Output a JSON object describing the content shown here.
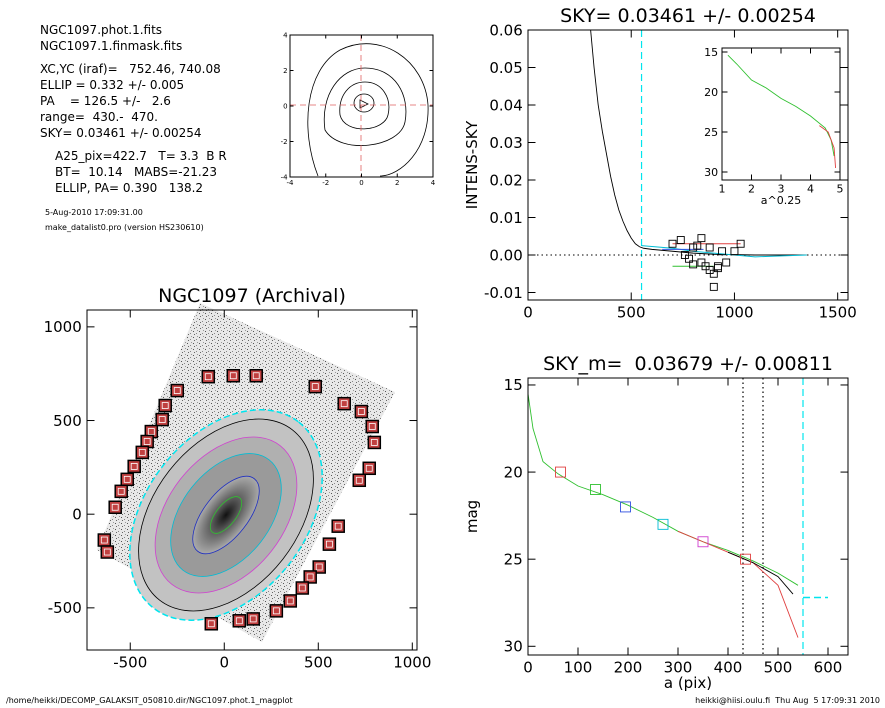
{
  "header": {
    "files": [
      "NGC1097.phot.1.fits",
      "NGC1097.1.finmask.fits"
    ],
    "params": [
      "XC,YC (iraf)=   752.46, 740.08",
      "ELLIP = 0.332 +/- 0.005",
      "PA    = 126.5 +/-   2.6",
      "range=  430.-  470.",
      "SKY= 0.03461 +/- 0.00254"
    ],
    "derived": [
      "A25_pix=422.7   T= 3.3  B R",
      "BT=  10.14   MABS=-21.23",
      "ELLIP, PA= 0.390   138.2"
    ],
    "date": "5-Aug-2010 17:09:31.00",
    "program": "make_datalist0.pro (version HS230610)"
  },
  "footer": {
    "left": "/home/heikki/DECOMP_GALAKSIT_050810.dir/NGC1097.phot.1_magplot",
    "right": "heikki@hiisi.oulu.fi  Thu Aug  5 17:09:31 2010"
  },
  "chart_data": [
    {
      "type": "contour",
      "xlim": [
        -4,
        4
      ],
      "ylim": [
        -4,
        4
      ],
      "xticks": [
        -4,
        -2,
        0,
        2,
        4
      ],
      "yticks": [
        -4,
        -2,
        0,
        2,
        4
      ]
    },
    {
      "type": "line",
      "title": "SKY= 0.03461 +/- 0.00254",
      "ylabel": "INTENS-SKY",
      "xlim": [
        0,
        1550
      ],
      "ylim": [
        -0.012,
        0.06
      ],
      "xticks": [
        0,
        500,
        1000,
        1500
      ],
      "yticks": [
        0.06,
        0.05,
        0.04,
        0.03,
        0.02,
        0.01,
        {
          "value": 0,
          "label": "0.00"
        },
        -0.01
      ],
      "series": [
        {
          "color": "#000000",
          "x": [
            300,
            320,
            340,
            360,
            380,
            400,
            420,
            440,
            460,
            480,
            500,
            520,
            540,
            560,
            600,
            700,
            800,
            900,
            1000,
            1100,
            1200,
            1350
          ],
          "values": [
            0.062,
            0.05,
            0.04,
            0.033,
            0.027,
            0.021,
            0.016,
            0.012,
            0.009,
            0.0065,
            0.0045,
            0.003,
            0.0022,
            0.0018,
            0.0015,
            0.001,
            0.0005,
            0.0002,
            0.0001,
            0,
            0,
            0
          ]
        },
        {
          "color": "#00bcd4",
          "x": [
            550,
            700,
            800,
            900,
            1000,
            1100,
            1200,
            1350
          ],
          "values": [
            0.0025,
            0.0018,
            0.001,
            0.0005,
            0,
            -0.0005,
            -0.0003,
            0
          ]
        },
        {
          "color": "#e04040",
          "x": [
            700,
            1030
          ],
          "values": [
            0.003,
            0.003
          ]
        },
        {
          "color": "#30c030",
          "x": [
            700,
            900
          ],
          "values": [
            -0.003,
            -0.003
          ]
        },
        {
          "color": "#3050e0",
          "x": [
            650,
            850
          ],
          "values": [
            0.0015,
            0.0015
          ]
        },
        {
          "color": "#000000",
          "marker": "square",
          "x": [
            700,
            740,
            760,
            780,
            800,
            820,
            840,
            860,
            880,
            900,
            920,
            940,
            960,
            1000,
            1030,
            800,
            840,
            880,
            920,
            900
          ],
          "values": [
            0.003,
            0.004,
            0,
            -0.001,
            0.002,
            0.0025,
            -0.002,
            -0.003,
            -0.004,
            -0.005,
            -0.003,
            0.001,
            -0.002,
            0.001,
            0.003,
            -0.0025,
            0.0045,
            0.002,
            -0.0035,
            -0.0085
          ]
        }
      ],
      "vlines": [
        {
          "x": 550,
          "color": "#00e5ee",
          "dash": "dash"
        }
      ],
      "hlines": [
        {
          "y": 0,
          "color": "#000000",
          "dash": "dot"
        }
      ]
    },
    {
      "type": "line",
      "xlabel": "a^0.25",
      "xlim": [
        1,
        5
      ],
      "ylim": [
        31,
        14.5
      ],
      "xticks": [
        1,
        2,
        3,
        4,
        5
      ],
      "yticks": [
        15,
        20,
        25,
        30
      ],
      "series": [
        {
          "color": "#30c030",
          "x": [
            1.2,
            1.5,
            2,
            2.5,
            3,
            3.5,
            4,
            4.5,
            4.7,
            4.8
          ],
          "values": [
            15.4,
            16.5,
            18.5,
            19.5,
            20.8,
            21.8,
            23,
            24.5,
            26,
            28
          ]
        },
        {
          "color": "#e04040",
          "x": [
            4.3,
            4.6,
            4.8,
            4.85
          ],
          "values": [
            24.2,
            25,
            27,
            29.5
          ]
        }
      ]
    },
    {
      "type": "image",
      "title": "NGC1097 (Archival)",
      "xlim": [
        -730,
        1025
      ],
      "ylim": [
        -725,
        1090
      ],
      "xticks": [
        -500,
        0,
        500,
        1000
      ],
      "yticks": [
        -500,
        0,
        500,
        1000
      ],
      "series": [
        {
          "color": "#8b0000",
          "marker": "square",
          "x": [
            -85,
            48,
            170,
            -250,
            -314,
            -330,
            -388,
            -410,
            -436,
            -479,
            -516,
            -548,
            -580,
            -638,
            -622,
            484,
            638,
            729,
            787,
            798,
            771,
            718,
            606,
            559,
            505,
            457,
            415,
            351,
            277,
            154,
            80,
            -69
          ],
          "values": [
            734,
            739,
            739,
            660,
            580,
            505,
            441,
            388,
            330,
            255,
            186,
            122,
            37,
            -138,
            -202,
            681,
            590,
            548,
            468,
            383,
            245,
            181,
            -64,
            -160,
            -282,
            -335,
            -394,
            -463,
            -516,
            -559,
            -569,
            -585
          ]
        }
      ]
    },
    {
      "type": "line",
      "title": "SKY_m=  0.03679 +/- 0.00811",
      "xlabel": "a (pix)",
      "ylabel": "mag",
      "xlim": [
        0,
        640
      ],
      "ylim": [
        30.5,
        14.6
      ],
      "xticks": [
        0,
        100,
        200,
        300,
        400,
        500,
        600
      ],
      "yticks": [
        15,
        20,
        25,
        30
      ],
      "series": [
        {
          "color": "#30c030",
          "x": [
            0,
            10,
            30,
            60,
            100,
            150,
            200,
            250,
            300,
            350,
            400,
            450,
            500,
            540
          ],
          "values": [
            15.5,
            17.5,
            19.4,
            20.1,
            20.8,
            21.3,
            21.9,
            22.6,
            23.4,
            24,
            24.5,
            25.1,
            25.8,
            26.5
          ]
        },
        {
          "color": "#e04040",
          "x": [
            300,
            350,
            400,
            450,
            500,
            540
          ],
          "values": [
            23.4,
            24,
            24.6,
            25.2,
            26.5,
            29.5
          ]
        },
        {
          "color": "#000000",
          "x": [
            400,
            450,
            500,
            530
          ],
          "values": [
            24.6,
            25.2,
            26,
            27
          ]
        },
        {
          "color": "#00e5ee",
          "dash": "dash",
          "x": [
            550,
            600
          ],
          "values": [
            27.2,
            27.2
          ]
        },
        {
          "marker": "square",
          "colors": [
            "#e04040",
            "#30c030",
            "#3050e0",
            "#00bcd4",
            "#d040d0",
            "#e04040"
          ],
          "x": [
            65,
            135,
            195,
            270,
            350,
            435
          ],
          "values": [
            20,
            21,
            22,
            23,
            24,
            25
          ]
        }
      ],
      "vlines": [
        {
          "x": 430,
          "color": "#000000",
          "dash": "dot"
        },
        {
          "x": 470,
          "color": "#000000",
          "dash": "dot"
        },
        {
          "x": 550,
          "color": "#00e5ee",
          "dash": "dash"
        }
      ]
    }
  ]
}
